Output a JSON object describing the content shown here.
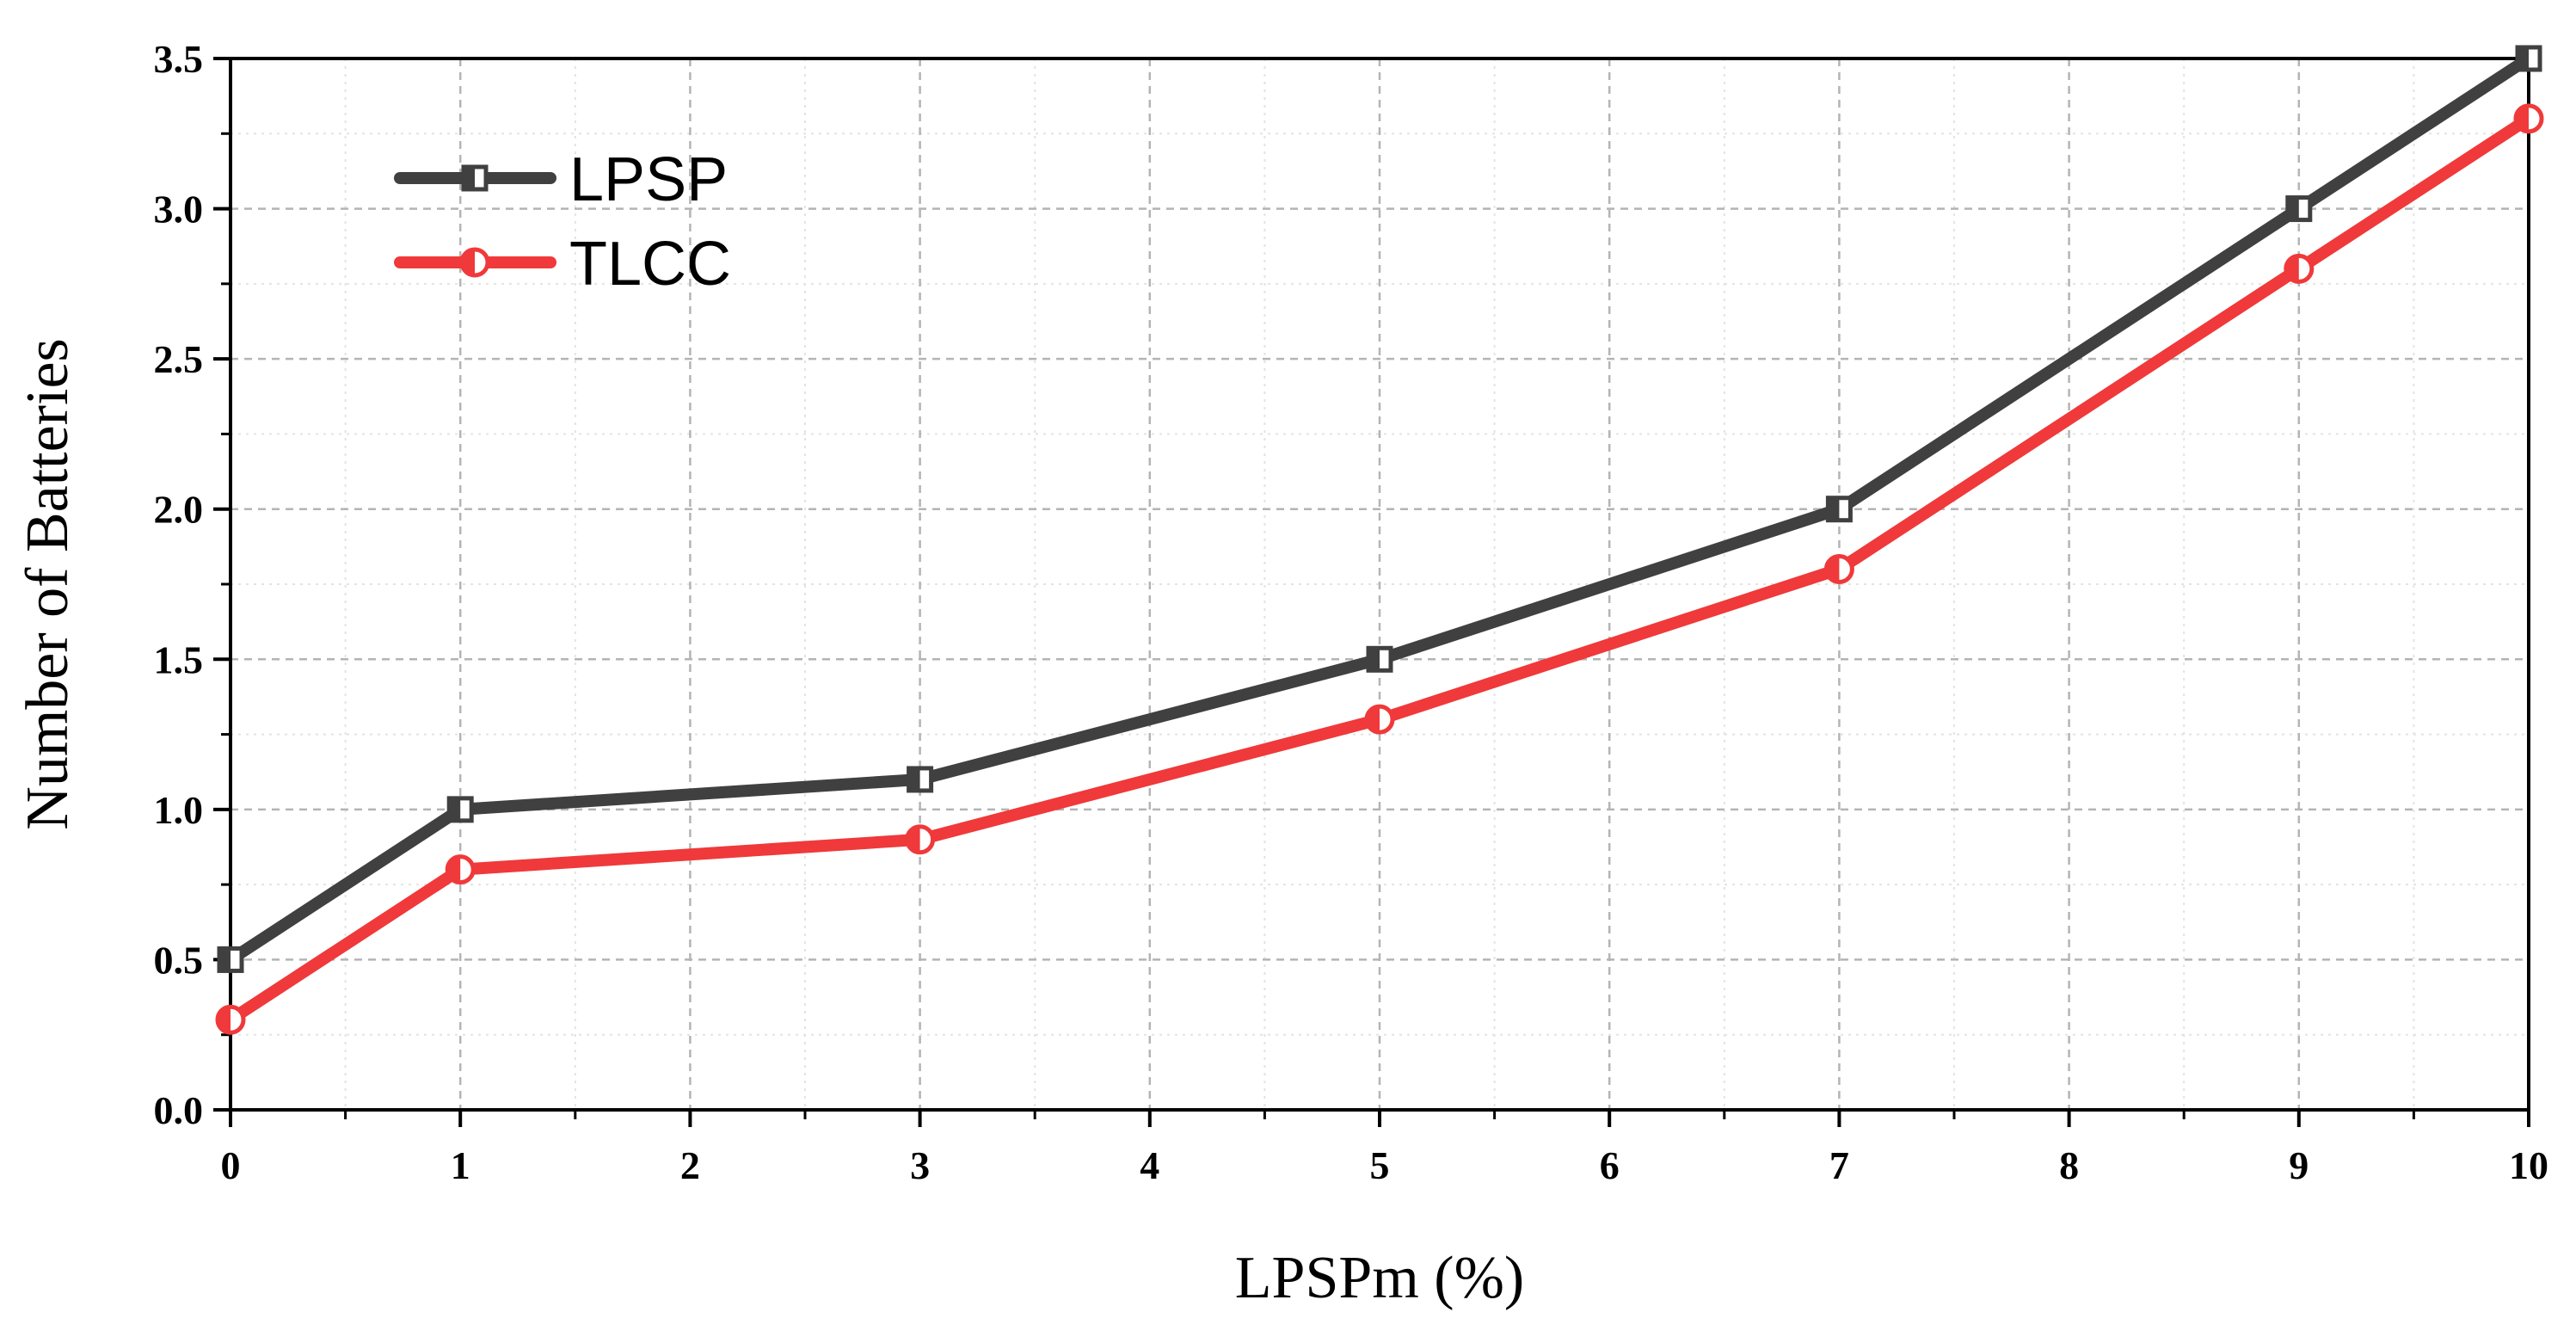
{
  "chart_data": {
    "type": "line",
    "title": "",
    "xlabel": "LPSPm (%)",
    "ylabel": "Number of Batteries",
    "xlim": [
      0,
      10
    ],
    "ylim": [
      0,
      3.5
    ],
    "x_ticks": [
      "0",
      "1",
      "2",
      "3",
      "4",
      "5",
      "6",
      "7",
      "8",
      "9",
      "10"
    ],
    "y_ticks": [
      "0.0",
      "0.5",
      "1.0",
      "1.5",
      "2.0",
      "2.5",
      "3.0",
      "3.5"
    ],
    "grid": true,
    "legend_position": "top-left",
    "series": [
      {
        "name": "LPSP",
        "color": "#404040",
        "marker": "half-filled-square",
        "x": [
          0,
          1,
          3,
          5,
          7,
          9,
          10
        ],
        "y": [
          0.5,
          1.0,
          1.1,
          1.5,
          2.0,
          3.0,
          3.5
        ]
      },
      {
        "name": "TLCC",
        "color": "#f0393a",
        "marker": "half-filled-circle",
        "x": [
          0,
          1,
          3,
          5,
          7,
          9,
          10
        ],
        "y": [
          0.3,
          0.8,
          0.9,
          1.3,
          1.8,
          2.8,
          3.3
        ]
      }
    ]
  }
}
